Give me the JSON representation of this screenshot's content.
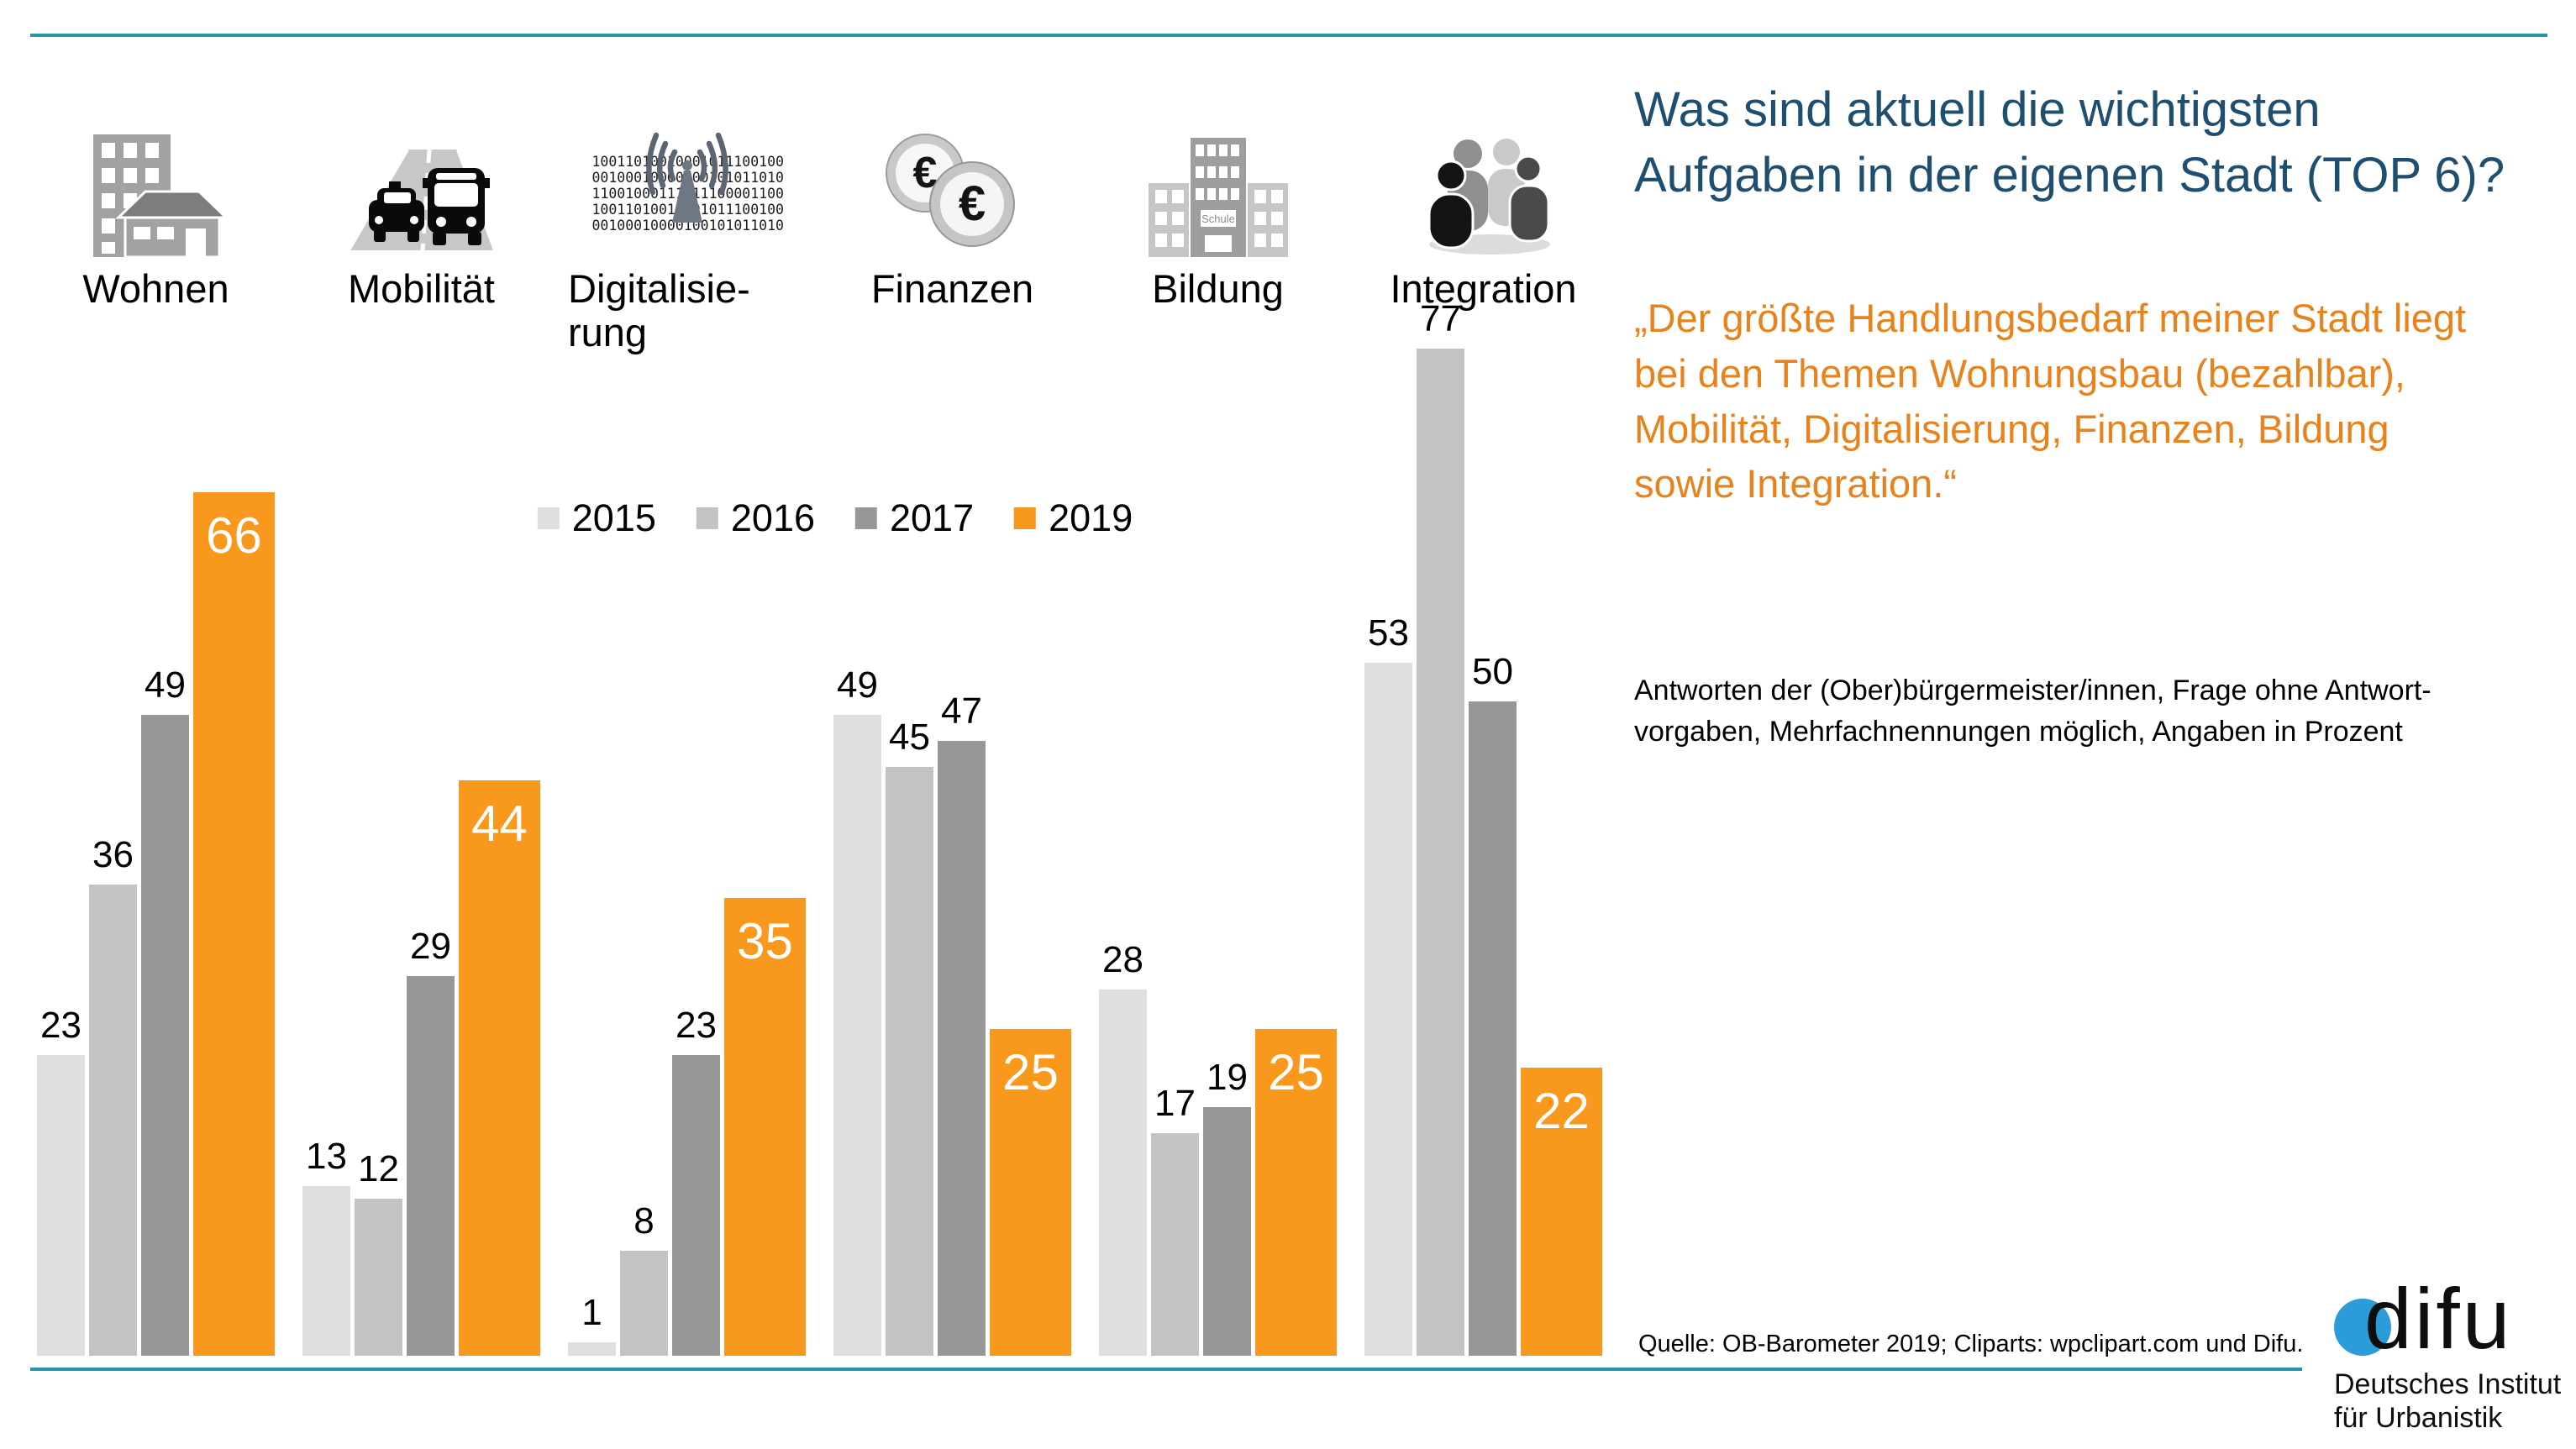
{
  "header": {
    "title": "Was sind aktuell die wichtigsten\nAufgaben in der eigenen Stadt (TOP 6)?",
    "title_color": "#1E4E70"
  },
  "quote": {
    "text": "„Der größte Handlungsbedarf meiner Stadt liegt\nbei den Themen Wohnungsbau (bezahlbar),\nMobilität, Digitalisierung, Finanzen, Bildung\nsowie Integration.“",
    "color": "#E8821C"
  },
  "note": {
    "text": "Antworten der (Ober)bürgermeister/innen, Frage ohne Antwort-\nvorgaben, Mehrfachnennungen möglich, Angaben in Prozent"
  },
  "source": {
    "text": "Quelle: OB-Barometer 2019; Cliparts: wpclipart.com und Difu."
  },
  "logo": {
    "word": "difu",
    "subtitle": "Deutsches Institut\nfür Urbanistik",
    "dot_color": "#2B9CD8"
  },
  "rule_color": "#2A94A8",
  "icons": {
    "bildung_sign": "Schule",
    "digital_binary": "10011010010001011100100\n00100010000100101011010\n11001000111011100001100\n10011010010001011100100\n00100010000100101011010"
  },
  "chart_data": {
    "type": "bar",
    "title": "Wichtigste Aufgaben in der eigenen Stadt (TOP 6)",
    "categories": [
      "Wohnen",
      "Mobilität",
      "Digitalisie-\nrung",
      "Finanzen",
      "Bildung",
      "Integration"
    ],
    "series": [
      {
        "name": "2015",
        "color": "#DFDFDF",
        "values": [
          23,
          13,
          1,
          49,
          28,
          53
        ]
      },
      {
        "name": "2016",
        "color": "#C3C3C3",
        "values": [
          36,
          12,
          8,
          45,
          17,
          77
        ]
      },
      {
        "name": "2017",
        "color": "#979797",
        "values": [
          49,
          29,
          23,
          47,
          19,
          50
        ]
      },
      {
        "name": "2019",
        "color": "#F8981D",
        "accent": true,
        "values": [
          66,
          44,
          35,
          25,
          25,
          22
        ]
      }
    ],
    "ylim": [
      0,
      80
    ],
    "value_labels": true,
    "grid": false,
    "legend_position": "top-center",
    "unit_note": "Angaben in Prozent"
  }
}
